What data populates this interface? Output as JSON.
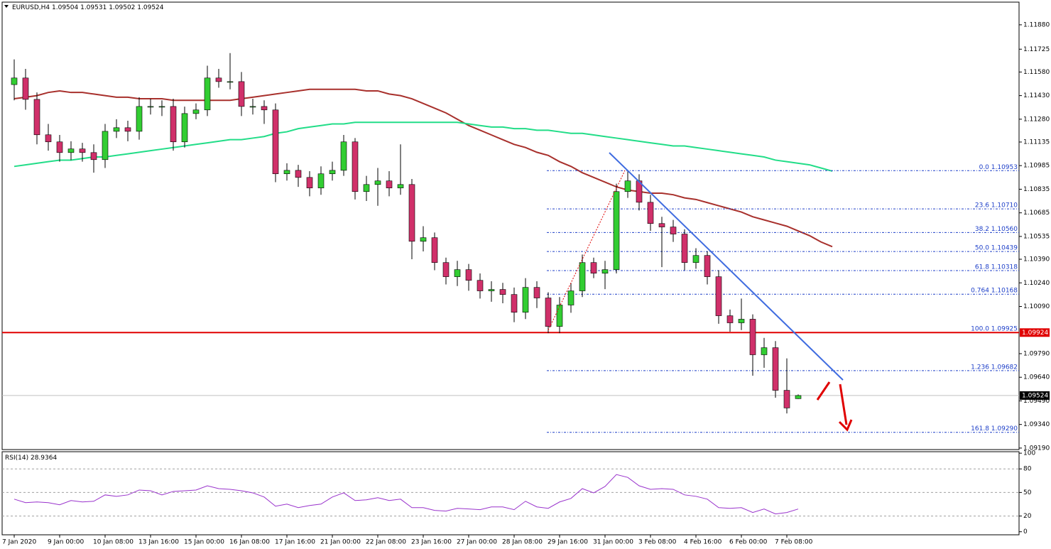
{
  "chart_data": [
    {
      "type": "candlestick",
      "title": "EURUSD,H4",
      "categories": [
        "7 Jan 2020",
        null,
        null,
        null,
        "9 Jan 00:00",
        null,
        null,
        null,
        "10 Jan 08:00",
        null,
        null,
        null,
        "13 Jan 16:00",
        null,
        null,
        null,
        "15 Jan 00:00",
        null,
        null,
        null,
        "16 Jan 08:00",
        null,
        null,
        null,
        "17 Jan 16:00",
        null,
        null,
        null,
        "21 Jan 00:00",
        null,
        null,
        null,
        "22 Jan 08:00",
        null,
        null,
        null,
        "23 Jan 16:00",
        null,
        null,
        null,
        "27 Jan 00:00",
        null,
        null,
        null,
        "28 Jan 08:00",
        null,
        null,
        null,
        "29 Jan 16:00",
        null,
        null,
        null,
        "31 Jan 00:00",
        null,
        null,
        null,
        "3 Feb 08:00",
        null,
        null,
        null,
        "4 Feb 16:00",
        null,
        null,
        null,
        "6 Feb 00:00",
        null,
        null,
        null,
        "7 Feb 08:00",
        null,
        null,
        null,
        null
      ],
      "open": [
        1.115,
        1.11542,
        1.11406,
        1.11181,
        1.11136,
        1.11068,
        1.11091,
        1.11068,
        1.11023,
        1.11203,
        1.11226,
        1.11203,
        1.11361,
        1.11361,
        1.11361,
        1.11136,
        1.11316,
        1.11339,
        1.11542,
        1.11519,
        1.11519,
        1.11361,
        1.11361,
        1.11339,
        1.10933,
        1.10955,
        1.1091,
        1.10843,
        1.10933,
        1.10955,
        1.11136,
        1.1082,
        1.10865,
        1.10888,
        1.10843,
        1.10865,
        1.10504,
        1.10527,
        1.10369,
        1.10279,
        1.10324,
        1.10256,
        1.10189,
        1.10198,
        1.10166,
        1.10053,
        1.10211,
        1.10144,
        1.09963,
        1.10099,
        1.10189,
        1.10369,
        1.10301,
        1.10324,
        1.1082,
        1.10888,
        1.10752,
        1.10617,
        1.10595,
        1.1055,
        1.10369,
        1.10414,
        1.10279,
        1.10031,
        1.09986,
        1.10009,
        1.09783,
        1.09828,
        1.09557,
        1.09504,
        null,
        null,
        null
      ],
      "high": [
        1.1166,
        1.116,
        1.1145,
        1.1125,
        1.1118,
        1.1114,
        1.1113,
        1.1112,
        1.1125,
        1.1128,
        1.1127,
        1.1142,
        1.1141,
        1.114,
        1.1141,
        1.1136,
        1.1138,
        1.1162,
        1.116,
        1.117,
        1.1158,
        1.1141,
        1.114,
        1.1138,
        1.11,
        1.1099,
        1.1095,
        1.1098,
        1.1101,
        1.1118,
        1.1116,
        1.1092,
        1.1097,
        1.1095,
        1.1112,
        1.109,
        1.106,
        1.1056,
        1.104,
        1.1038,
        1.1036,
        1.103,
        1.1025,
        1.1024,
        1.1021,
        1.1027,
        1.1025,
        1.1018,
        1.1015,
        1.1024,
        1.1042,
        1.104,
        1.1038,
        1.1087,
        1.1095,
        1.1093,
        1.108,
        1.1066,
        1.1064,
        1.1058,
        1.1046,
        1.1044,
        1.1032,
        1.1007,
        1.1014,
        1.1004,
        1.0989,
        1.0987,
        1.0976,
        1.09531,
        null,
        null,
        null
      ],
      "low": [
        1.114,
        1.1134,
        1.1112,
        1.1108,
        1.1101,
        1.1102,
        1.1101,
        1.1094,
        1.1097,
        1.1116,
        1.1114,
        1.1115,
        1.1131,
        1.113,
        1.1108,
        1.111,
        1.1128,
        1.113,
        1.1148,
        1.1147,
        1.113,
        1.1131,
        1.1125,
        1.1088,
        1.1089,
        1.1085,
        1.1079,
        1.108,
        1.1089,
        1.1092,
        1.1077,
        1.1076,
        1.1073,
        1.1079,
        1.108,
        1.1039,
        1.1044,
        1.1032,
        1.1023,
        1.1022,
        1.1019,
        1.1014,
        1.1012,
        1.1011,
        1.0999,
        1.1001,
        1.1008,
        1.0992,
        1.0992,
        1.1005,
        1.1015,
        1.1027,
        1.102,
        1.103,
        1.1078,
        1.107,
        1.1057,
        1.1034,
        1.105,
        1.1032,
        1.1033,
        1.1023,
        1.0998,
        1.0993,
        1.0994,
        1.0965,
        1.097,
        1.0951,
        1.0941,
        1.09502,
        null,
        null,
        null
      ],
      "close": [
        1.11542,
        1.11406,
        1.11181,
        1.11136,
        1.11068,
        1.11091,
        1.11068,
        1.11023,
        1.11203,
        1.11226,
        1.11203,
        1.11361,
        1.11361,
        1.11361,
        1.11136,
        1.11316,
        1.11339,
        1.11542,
        1.11519,
        1.11519,
        1.11361,
        1.11361,
        1.11339,
        1.10933,
        1.10955,
        1.1091,
        1.10843,
        1.10933,
        1.10955,
        1.11136,
        1.1082,
        1.10865,
        1.10888,
        1.10843,
        1.10865,
        1.10504,
        1.10527,
        1.10369,
        1.10279,
        1.10324,
        1.10256,
        1.10189,
        1.10198,
        1.10166,
        1.10053,
        1.10211,
        1.10144,
        1.09963,
        1.10099,
        1.10189,
        1.10369,
        1.10301,
        1.10324,
        1.1082,
        1.10888,
        1.10752,
        1.10617,
        1.10595,
        1.1055,
        1.10369,
        1.10414,
        1.10279,
        1.10031,
        1.09986,
        1.10009,
        1.09783,
        1.09828,
        1.09557,
        1.09445,
        1.09524,
        null,
        null,
        null
      ],
      "up_color": "#32cd32",
      "down_color": "#d0306a",
      "lines": [
        {
          "color": "#a8302c",
          "values": [
            1.1141,
            1.1142,
            1.1143,
            1.1145,
            1.1146,
            1.1145,
            1.1145,
            1.1144,
            1.1143,
            1.1142,
            1.1142,
            1.1141,
            1.1141,
            1.1141,
            1.114,
            1.114,
            1.114,
            1.114,
            1.114,
            1.114,
            1.1141,
            1.1142,
            1.1143,
            1.1144,
            1.1145,
            1.1146,
            1.1147,
            1.1147,
            1.1147,
            1.1147,
            1.1147,
            1.1146,
            1.1146,
            1.1144,
            1.1143,
            1.1141,
            1.1138,
            1.1135,
            1.1132,
            1.1128,
            1.1124,
            1.1121,
            1.1118,
            1.1115,
            1.1112,
            1.111,
            1.1107,
            1.1105,
            1.1101,
            1.1098,
            1.1094,
            1.1091,
            1.1088,
            1.1085,
            1.1083,
            1.1082,
            1.1081,
            1.1081,
            1.108,
            1.1078,
            1.1077,
            1.1075,
            1.1073,
            1.1071,
            1.1069,
            1.1066,
            1.1064,
            1.1062,
            1.106,
            1.1057,
            1.1054,
            1.105,
            1.1047
          ]
        },
        {
          "color": "#22dd88",
          "values": [
            1.1098,
            1.1099,
            1.11,
            1.1101,
            1.1102,
            1.1102,
            1.1103,
            1.1104,
            1.1104,
            1.1105,
            1.1106,
            1.1107,
            1.1108,
            1.1109,
            1.111,
            1.1111,
            1.1112,
            1.1113,
            1.1114,
            1.1115,
            1.1115,
            1.1116,
            1.1117,
            1.1119,
            1.112,
            1.1122,
            1.1123,
            1.1124,
            1.1125,
            1.1125,
            1.1126,
            1.1126,
            1.1126,
            1.1126,
            1.1126,
            1.1126,
            1.1126,
            1.1126,
            1.1126,
            1.1126,
            1.1125,
            1.1124,
            1.1123,
            1.1123,
            1.1122,
            1.1122,
            1.1121,
            1.1121,
            1.112,
            1.1119,
            1.1119,
            1.1118,
            1.1117,
            1.1116,
            1.1115,
            1.1114,
            1.1113,
            1.1112,
            1.1111,
            1.1111,
            1.111,
            1.1109,
            1.1108,
            1.1107,
            1.1106,
            1.1105,
            1.1104,
            1.1102,
            1.1101,
            1.11,
            1.1099,
            1.1097,
            1.1095
          ]
        }
      ],
      "ylim": [
        1.09185,
        1.12015
      ],
      "yticks": [
        {
          "value": 1.1188,
          "label": "1.11880"
        },
        {
          "value": 1.11725,
          "label": "1.11725"
        },
        {
          "value": 1.1158,
          "label": "1.11580"
        },
        {
          "value": 1.1143,
          "label": "1.11430"
        },
        {
          "value": 1.1128,
          "label": "1.11280"
        },
        {
          "value": 1.11135,
          "label": "1.11135"
        },
        {
          "value": 1.10985,
          "label": "1.10985"
        },
        {
          "value": 1.10835,
          "label": "1.10835"
        },
        {
          "value": 1.10685,
          "label": "1.10685"
        },
        {
          "value": 1.10535,
          "label": "1.10535"
        },
        {
          "value": 1.1039,
          "label": "1.10390"
        },
        {
          "value": 1.1024,
          "label": "1.10240"
        },
        {
          "value": 1.1009,
          "label": "1.10090"
        },
        {
          "value": 1.0979,
          "label": "1.09790"
        },
        {
          "value": 1.0964,
          "label": "1.09640"
        },
        {
          "value": 1.0949,
          "label": "1.09490"
        },
        {
          "value": 1.0934,
          "label": "1.09340"
        },
        {
          "value": 1.0919,
          "label": "1.09190"
        }
      ],
      "support": 1.09924,
      "support_color": "#e00000",
      "fib_color": "#1c3ec8",
      "fib_levels": [
        {
          "label": "0.0 1.10953",
          "value": 1.10953
        },
        {
          "label": "23.6 1.10710",
          "value": 1.1071
        },
        {
          "label": "38.2 1.10560",
          "value": 1.1056
        },
        {
          "label": "50.0 1.10439",
          "value": 1.10439
        },
        {
          "label": "61.8 1.10318",
          "value": 1.10318
        },
        {
          "label": "0.764 1.10168",
          "value": 1.10168
        },
        {
          "label": "100.0 1.09925",
          "value": 1.09925
        },
        {
          "label": "1.236 1.09682",
          "value": 1.09682
        },
        {
          "label": "161.8 1.09290",
          "value": 1.0929
        }
      ]
    },
    {
      "type": "line",
      "title": "RSI(14)",
      "color": "#9932cc",
      "values": [
        41.5,
        37.0,
        37.9,
        37.0,
        34.3,
        39.7,
        37.9,
        38.8,
        46.9,
        45.1,
        46.9,
        53.1,
        52.2,
        46.9,
        51.3,
        52.2,
        53.1,
        58.5,
        54.9,
        54.0,
        52.2,
        49.5,
        44.2,
        32.5,
        35.2,
        30.7,
        33.4,
        35.2,
        44.2,
        49.5,
        39.7,
        40.6,
        43.3,
        39.7,
        41.5,
        30.7,
        30.7,
        27.2,
        26.3,
        29.8,
        29.0,
        28.1,
        31.6,
        31.6,
        28.1,
        38.8,
        31.6,
        29.8,
        37.9,
        42.4,
        54.9,
        49.5,
        57.6,
        72.8,
        69.2,
        58.5,
        54.0,
        54.9,
        54.0,
        46.9,
        45.1,
        41.5,
        30.7,
        29.8,
        30.7,
        24.5,
        29.0,
        22.7,
        24.5,
        28.9364
      ],
      "ylim": [
        -3,
        101
      ],
      "yticks": [
        100,
        80,
        50,
        20,
        0
      ],
      "levels": [
        20,
        50,
        80
      ]
    }
  ]
}
